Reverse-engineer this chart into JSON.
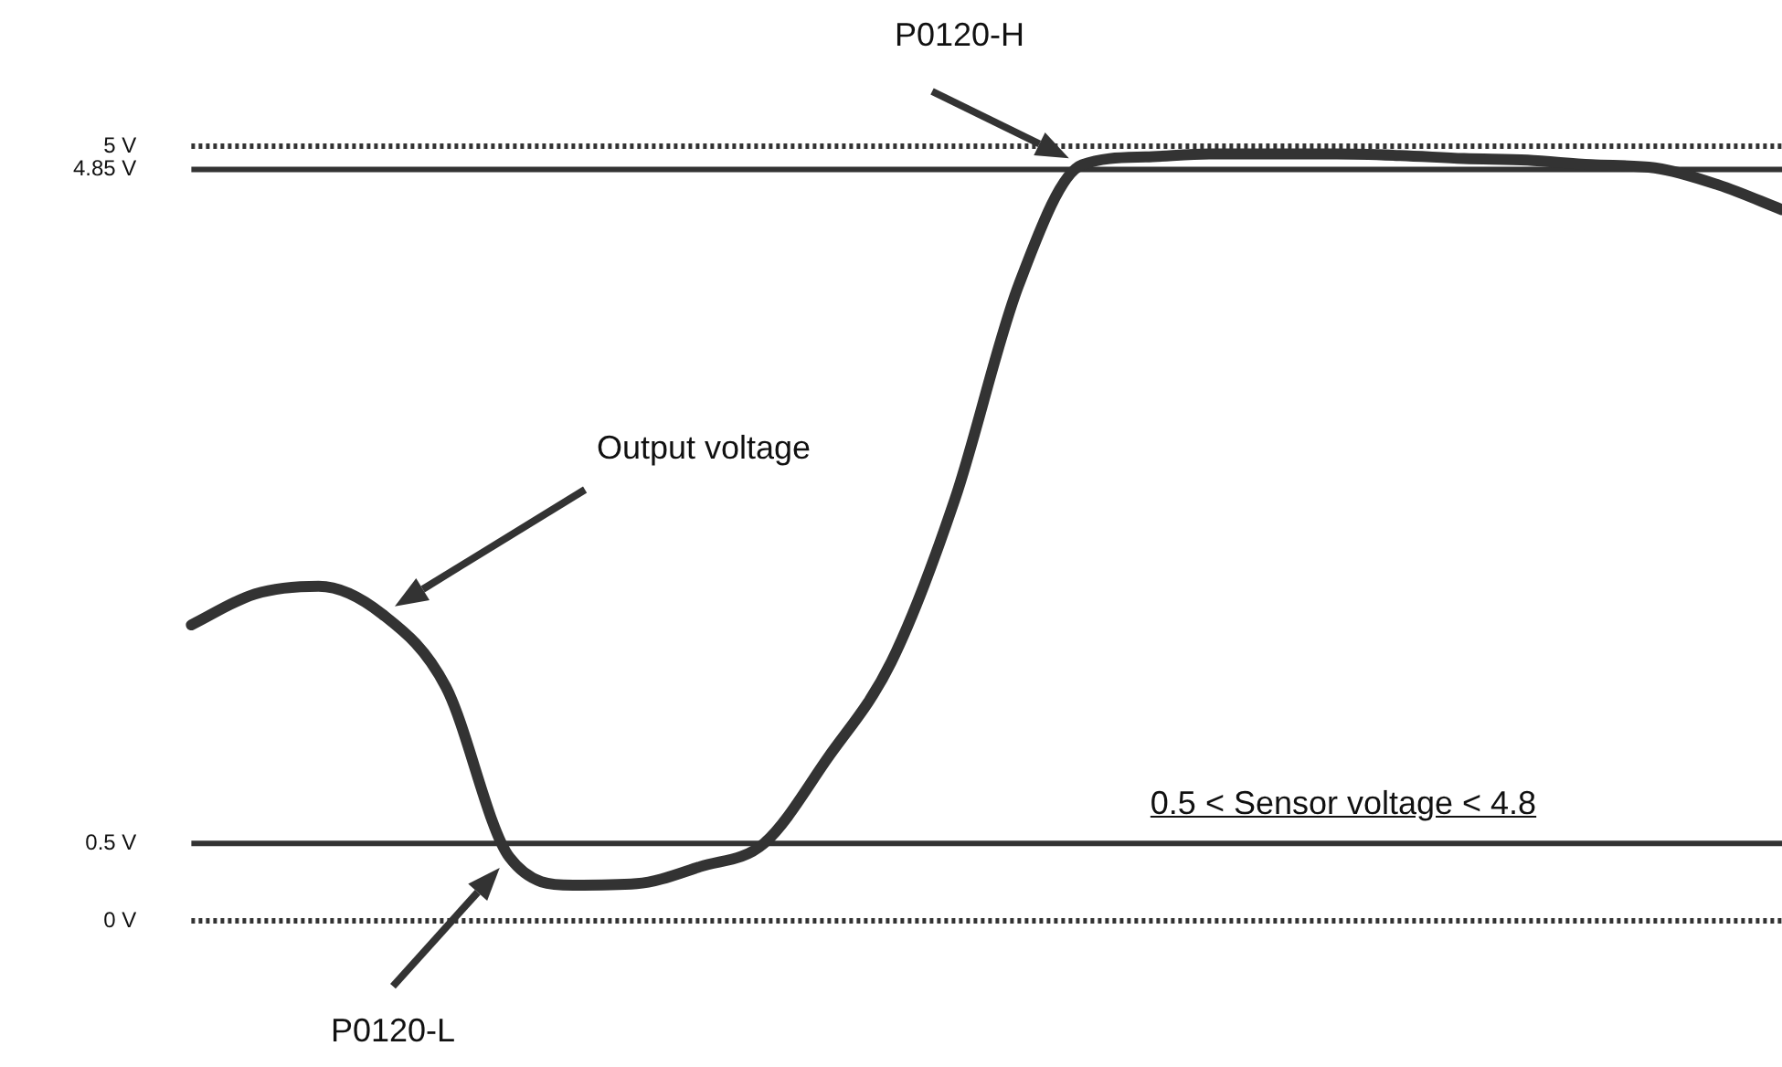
{
  "chart_data": {
    "type": "line",
    "categories": [
      null,
      null,
      null,
      null,
      null,
      null,
      null,
      null,
      null,
      null,
      null,
      null,
      null,
      null,
      null,
      null,
      null,
      null,
      null,
      null,
      null,
      null,
      null,
      null,
      null,
      null
    ],
    "series": [
      {
        "color": "#333333",
        "values": [
          1.91,
          2.11,
          2.16,
          1.98,
          1.51,
          0.41,
          0.23,
          0.24,
          0.35,
          0.5,
          1.05,
          1.67,
          2.72,
          4.1,
          4.88,
          4.93,
          4.95,
          4.95,
          4.95,
          4.94,
          4.92,
          4.91,
          4.88,
          4.86,
          4.75,
          4.59
        ]
      }
    ],
    "ylim": [
      0,
      5
    ],
    "yticks": [
      {
        "value": 0,
        "label": "0 V"
      },
      {
        "value": 0.5,
        "label": "0.5 V"
      },
      {
        "value": 4.85,
        "label": "4.85 V"
      },
      {
        "value": 5,
        "label": "5 V"
      }
    ],
    "ref_lines": [
      {
        "axis": "y",
        "value": 0,
        "color": "#333333",
        "line_style": "dotted"
      },
      {
        "axis": "y",
        "value": 0.5,
        "color": "#333333",
        "line_style": "solid"
      },
      {
        "axis": "y",
        "value": 4.85,
        "color": "#333333",
        "line_style": "solid"
      },
      {
        "axis": "y",
        "value": 5,
        "color": "#333333",
        "line_style": "dotted"
      }
    ],
    "annotations": [
      "Output voltage",
      "P0120-H",
      "P0120-L",
      "0.5 < Sensor voltage < 4.8"
    ],
    "tick_labels": "y",
    "line_style": "solid"
  }
}
